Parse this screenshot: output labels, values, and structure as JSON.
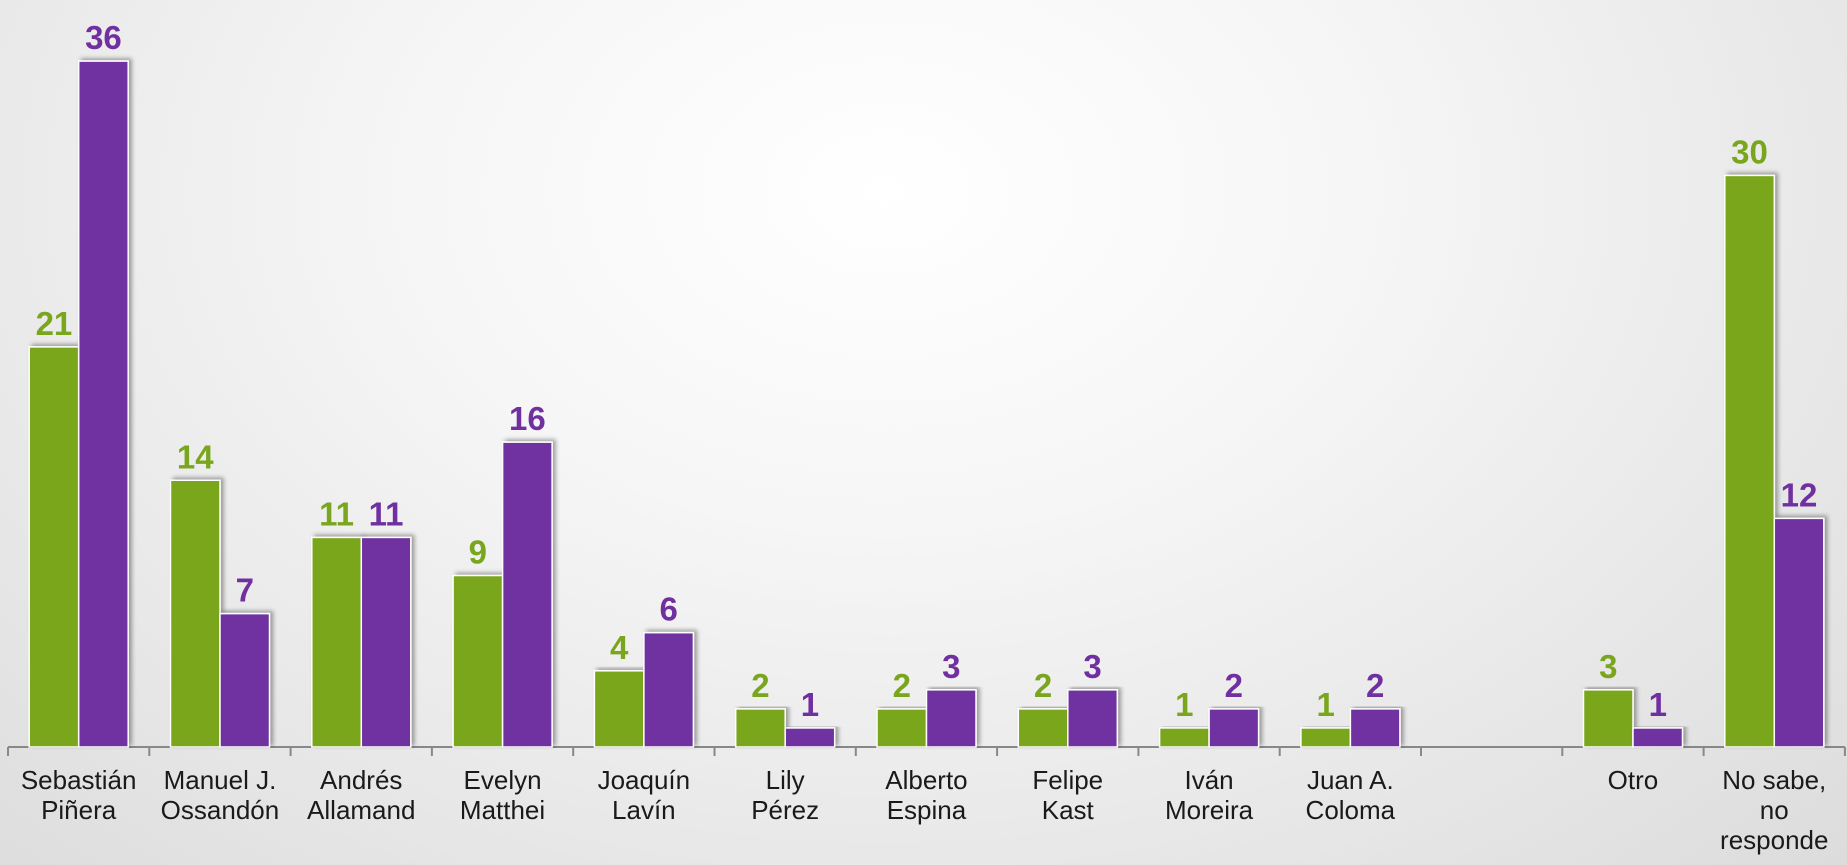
{
  "chart_data": {
    "type": "bar",
    "categories": [
      [
        "Sebastián",
        "Piñera"
      ],
      [
        "Manuel J.",
        "Ossandón"
      ],
      [
        "Andrés",
        "Allamand"
      ],
      [
        "Evelyn",
        "Matthei"
      ],
      [
        "Joaquín",
        "Lavín"
      ],
      [
        "Lily",
        "Pérez"
      ],
      [
        "Alberto",
        "Espina"
      ],
      [
        "Felipe",
        "Kast"
      ],
      [
        "Iván",
        "Moreira"
      ],
      [
        "Juan A.",
        "Coloma"
      ],
      null,
      [
        "Otro"
      ],
      [
        "No sabe,",
        "no",
        "responde"
      ]
    ],
    "series": [
      {
        "color": "#7aa61e",
        "values": [
          21,
          14,
          11,
          9,
          4,
          2,
          2,
          2,
          1,
          1,
          null,
          3,
          30
        ]
      },
      {
        "color": "#7030a0",
        "values": [
          36,
          7,
          11,
          16,
          6,
          1,
          3,
          3,
          2,
          2,
          null,
          1,
          12
        ]
      }
    ],
    "ylim": [
      0,
      38
    ]
  }
}
